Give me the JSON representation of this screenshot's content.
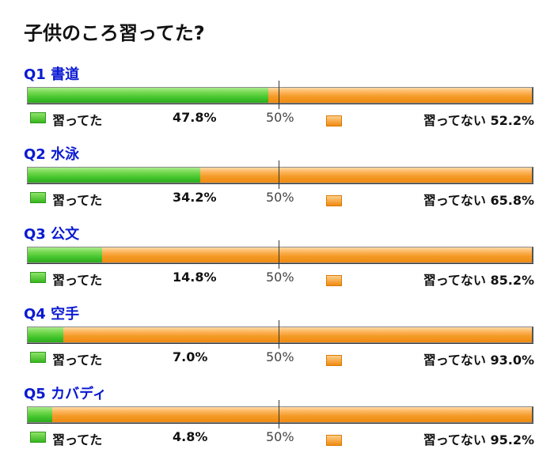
{
  "title": "子供のころ習ってた?",
  "legend": {
    "yes": "習ってた",
    "no": "習ってない",
    "mid": "50%"
  },
  "colors": {
    "yes": "#3ec22a",
    "no": "#f39a26",
    "question": "#0a1ad2"
  },
  "chart_data": {
    "type": "bar",
    "stacked": true,
    "orientation": "horizontal",
    "title": "子供のころ習ってた?",
    "categories": [
      "Q1 書道",
      "Q2 水泳",
      "Q3 公文",
      "Q4 空手",
      "Q5 カバディ"
    ],
    "series": [
      {
        "name": "習ってた",
        "values": [
          47.8,
          34.2,
          14.8,
          7.0,
          4.8
        ]
      },
      {
        "name": "習ってない",
        "values": [
          52.2,
          65.8,
          85.2,
          93.0,
          95.2
        ]
      }
    ],
    "xlim": [
      0,
      100
    ],
    "reference_line": "50%"
  },
  "questions": [
    {
      "label": "Q1 書道",
      "yes_pct": "47.8%",
      "no_pct": "52.2%",
      "yes_value": 47.8
    },
    {
      "label": "Q2 水泳",
      "yes_pct": "34.2%",
      "no_pct": "65.8%",
      "yes_value": 34.2
    },
    {
      "label": "Q3 公文",
      "yes_pct": "14.8%",
      "no_pct": "85.2%",
      "yes_value": 14.8
    },
    {
      "label": "Q4 空手",
      "yes_pct": "7.0%",
      "no_pct": "93.0%",
      "yes_value": 7.0
    },
    {
      "label": "Q5 カバディ",
      "yes_pct": "4.8%",
      "no_pct": "95.2%",
      "yes_value": 4.8
    }
  ]
}
